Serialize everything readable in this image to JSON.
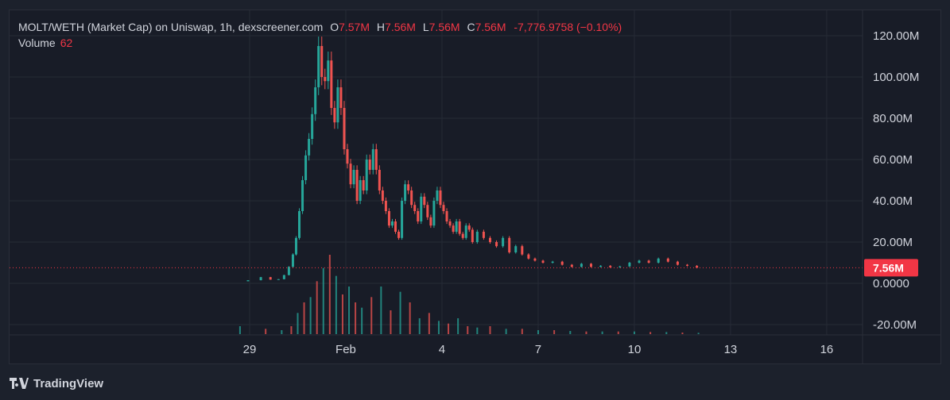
{
  "legend": {
    "symbol": "MOLT/WETH (Market Cap) on Uniswap, 1h, dexscreener.com",
    "open_label": "O",
    "open": "7.57M",
    "high_label": "H",
    "high": "7.56M",
    "low_label": "L",
    "low": "7.56M",
    "close_label": "C",
    "close": "7.56M",
    "change": "-7,776.9758 (−0.10%)",
    "volume_label": "Volume",
    "volume_value": "62"
  },
  "brand": {
    "name": "TradingView"
  },
  "colors": {
    "up": "#26a69a",
    "down": "#ef5350",
    "price_line": "#f23645",
    "background": "#181c27",
    "grid": "#262b36",
    "text": "#d1d4dc"
  },
  "chart_data": {
    "type": "candlestick",
    "title": "MOLT/WETH (Market Cap) on Uniswap, 1h, dexscreener.com",
    "y_ticks": [
      "120.00M",
      "100.00M",
      "80.00M",
      "60.00M",
      "40.00M",
      "20.00M",
      "0.0000",
      "-20.00M"
    ],
    "y_tick_values": [
      120,
      100,
      80,
      60,
      40,
      20,
      0,
      -20
    ],
    "ylim": [
      -24,
      130
    ],
    "y_unit": "M",
    "x_ticks": [
      "29",
      "Feb",
      "4",
      "7",
      "10",
      "13",
      "16"
    ],
    "x_tick_values": [
      0,
      3,
      6,
      9,
      12,
      15,
      18
    ],
    "xlim": [
      -3.75,
      19.5
    ],
    "x_axis_note": "days since Jan 29",
    "last_price": 7.56,
    "last_price_label": "7.56M",
    "grid": true,
    "series": [
      {
        "name": "Market Cap",
        "kind": "close_path",
        "x": [
          -0.3,
          0.2,
          0.5,
          0.8,
          1.0,
          1.15,
          1.3,
          1.4,
          1.5,
          1.6,
          1.7,
          1.8,
          1.9,
          2.0,
          2.1,
          2.2,
          2.3,
          2.4,
          2.5,
          2.6,
          2.7,
          2.8,
          2.9,
          3.0,
          3.1,
          3.2,
          3.3,
          3.4,
          3.5,
          3.6,
          3.7,
          3.8,
          3.9,
          4.0,
          4.1,
          4.2,
          4.3,
          4.4,
          4.5,
          4.6,
          4.7,
          4.8,
          4.9,
          5.0,
          5.1,
          5.2,
          5.3,
          5.4,
          5.5,
          5.6,
          5.7,
          5.8,
          5.9,
          6.0,
          6.1,
          6.2,
          6.3,
          6.4,
          6.5,
          6.6,
          6.7,
          6.8,
          6.9,
          7.0,
          7.2,
          7.4,
          7.6,
          7.8,
          8.0,
          8.2,
          8.4,
          8.6,
          8.8,
          9.0,
          9.3,
          9.6,
          9.9,
          10.2,
          10.5,
          10.8,
          11.1,
          11.4,
          11.7,
          12.0,
          12.3,
          12.6,
          12.9,
          13.2,
          13.5,
          13.8,
          14.1
        ],
        "values": [
          1,
          1.5,
          3,
          1.8,
          2,
          4,
          8,
          14,
          22,
          35,
          50,
          62,
          70,
          82,
          95,
          115,
          100,
          98,
          108,
          85,
          78,
          95,
          85,
          65,
          58,
          48,
          55,
          40,
          50,
          45,
          60,
          55,
          65,
          55,
          45,
          40,
          35,
          28,
          30,
          25,
          22,
          40,
          48,
          45,
          38,
          35,
          30,
          42,
          38,
          32,
          28,
          40,
          45,
          38,
          35,
          30,
          28,
          25,
          30,
          24,
          22,
          28,
          26,
          20,
          25,
          22,
          20,
          18,
          22,
          15,
          18,
          14,
          12,
          11,
          10,
          10.5,
          9,
          8,
          9.5,
          8,
          8.5,
          7.8,
          8.2,
          10,
          11,
          10,
          12,
          10.5,
          9,
          8.5,
          7.56
        ]
      },
      {
        "name": "Volume",
        "kind": "volume_bars",
        "x": [
          -0.3,
          0.5,
          1.0,
          1.3,
          1.5,
          1.7,
          1.9,
          2.1,
          2.3,
          2.5,
          2.7,
          2.9,
          3.1,
          3.3,
          3.5,
          3.8,
          4.1,
          4.4,
          4.7,
          5.0,
          5.3,
          5.6,
          5.9,
          6.2,
          6.5,
          6.8,
          7.1,
          7.5,
          8.0,
          8.5,
          9.0,
          9.5,
          10.0,
          10.5,
          11.0,
          11.5,
          12.0,
          12.5,
          13.0,
          13.5,
          14.0
        ],
        "values": [
          3,
          2,
          1.5,
          3,
          8,
          12,
          14,
          20,
          25,
          30,
          22,
          15,
          18,
          12,
          10,
          14,
          18,
          9,
          16,
          12,
          6,
          8,
          5,
          4,
          6,
          3,
          2.5,
          3,
          2,
          2,
          1.5,
          1.5,
          1.2,
          1,
          1,
          1,
          1,
          0.8,
          0.8,
          0.6,
          0.5
        ]
      }
    ]
  }
}
